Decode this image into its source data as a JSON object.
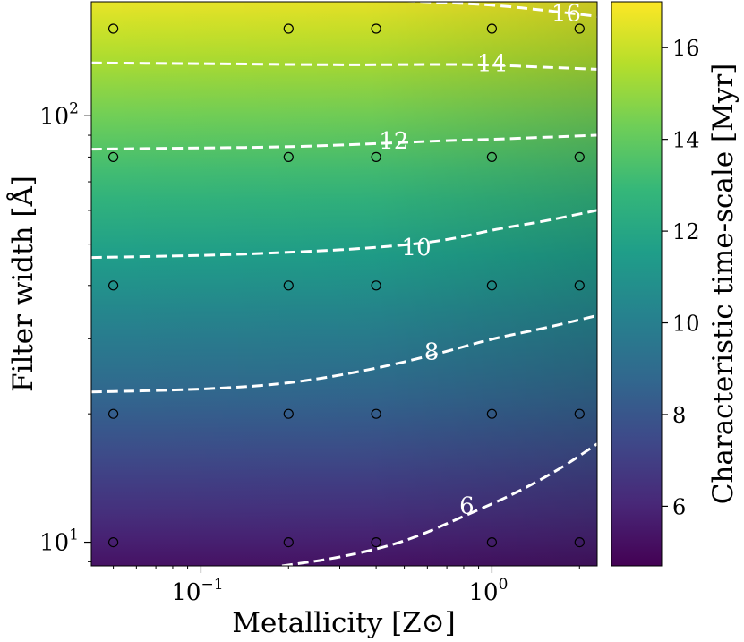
{
  "chart_data": {
    "type": "heatmap",
    "subtype": "contour",
    "title": "",
    "xlabel": "Metallicity [Z⊙]",
    "ylabel": "Filter width [Å]",
    "colorbar_label": "Characteristic time-scale [Myr]",
    "colormap": "viridis",
    "xscale": "log",
    "yscale": "log",
    "xlim": [
      0.042,
      2.3
    ],
    "ylim": [
      8.8,
      185
    ],
    "clim": [
      4.7,
      17.0
    ],
    "x_major_ticks": [
      {
        "value": 0.1,
        "base": "10",
        "exp": "−1"
      },
      {
        "value": 1,
        "base": "10",
        "exp": "0"
      }
    ],
    "y_major_ticks": [
      {
        "value": 10,
        "base": "10",
        "exp": "1"
      },
      {
        "value": 100,
        "base": "10",
        "exp": "2"
      }
    ],
    "colorbar_ticks": [
      6,
      8,
      10,
      12,
      14,
      16
    ],
    "sample_points": {
      "x": [
        0.05,
        0.2,
        0.4,
        1.0,
        2.0
      ],
      "y": [
        10,
        20,
        40,
        80,
        160
      ]
    },
    "contours": [
      {
        "level": 6,
        "label": "6",
        "label_at": [
          0.82,
          12.2
        ],
        "points": [
          [
            0.19,
            8.8
          ],
          [
            0.3,
            9.2
          ],
          [
            0.5,
            10.0
          ],
          [
            0.8,
            11.5
          ],
          [
            1.2,
            13.0
          ],
          [
            1.7,
            14.8
          ],
          [
            2.3,
            17.0
          ]
        ]
      },
      {
        "level": 8,
        "label": "8",
        "label_at": [
          0.62,
          28.0
        ],
        "points": [
          [
            0.042,
            22.5
          ],
          [
            0.1,
            22.8
          ],
          [
            0.2,
            23.5
          ],
          [
            0.4,
            25.5
          ],
          [
            0.7,
            28.0
          ],
          [
            1.0,
            30.0
          ],
          [
            1.5,
            31.7
          ],
          [
            2.3,
            34.0
          ]
        ]
      },
      {
        "level": 10,
        "label": "10",
        "label_at": [
          0.55,
          49.2
        ],
        "points": [
          [
            0.042,
            46.5
          ],
          [
            0.1,
            47.0
          ],
          [
            0.2,
            47.8
          ],
          [
            0.4,
            49.0
          ],
          [
            0.7,
            51.0
          ],
          [
            1.0,
            54.0
          ],
          [
            1.5,
            56.5
          ],
          [
            2.3,
            60.0
          ]
        ]
      },
      {
        "level": 12,
        "label": "12",
        "label_at": [
          0.46,
          87.5
        ],
        "points": [
          [
            0.042,
            83.5
          ],
          [
            0.1,
            84.0
          ],
          [
            0.2,
            84.5
          ],
          [
            0.4,
            86.0
          ],
          [
            0.7,
            87.5
          ],
          [
            1.0,
            88.0
          ],
          [
            1.5,
            89.0
          ],
          [
            2.3,
            90.0
          ]
        ]
      },
      {
        "level": 14,
        "label": "14",
        "label_at": [
          1.0,
          133.0
        ],
        "points": [
          [
            0.042,
            133.0
          ],
          [
            0.1,
            132.5
          ],
          [
            0.3,
            131.5
          ],
          [
            0.7,
            132.0
          ],
          [
            1.0,
            131.5
          ],
          [
            1.5,
            130.0
          ],
          [
            2.3,
            128.5
          ]
        ]
      },
      {
        "level": 16,
        "label": "16",
        "label_at": [
          1.8,
          174.0
        ],
        "points": [
          [
            0.34,
            188.0
          ],
          [
            0.6,
            185.0
          ],
          [
            1.0,
            182.0
          ],
          [
            1.6,
            176.0
          ],
          [
            2.3,
            171.0
          ]
        ]
      }
    ]
  }
}
